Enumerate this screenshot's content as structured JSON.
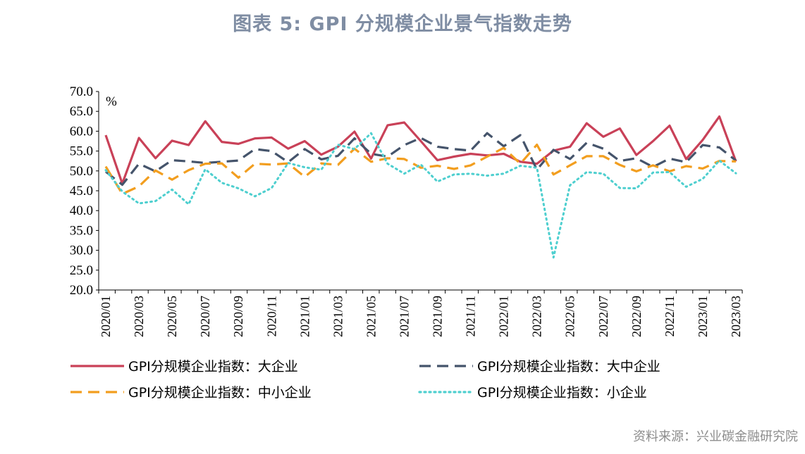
{
  "title": "图表 5:  GPI 分规模企业景气指数走势",
  "source": "资料来源：兴业碳金融研究院",
  "chart_data": {
    "type": "line",
    "unit_label": "%",
    "ylim": [
      20,
      70
    ],
    "yticks": [
      "70.0",
      "65.0",
      "60.0",
      "55.0",
      "50.0",
      "45.0",
      "40.0",
      "35.0",
      "30.0",
      "25.0",
      "20.0"
    ],
    "xlabels": [
      "2020/01",
      "2020/03",
      "2020/05",
      "2020/07",
      "2020/09",
      "2020/11",
      "2021/01",
      "2021/03",
      "2021/05",
      "2021/07",
      "2021/09",
      "2021/11",
      "2022/01",
      "2022/03",
      "2022/05",
      "2022/07",
      "2022/09",
      "2022/11",
      "2023/01",
      "2023/03"
    ],
    "categories": [
      "2020/01",
      "2020/02",
      "2020/03",
      "2020/04",
      "2020/05",
      "2020/06",
      "2020/07",
      "2020/08",
      "2020/09",
      "2020/10",
      "2020/11",
      "2020/12",
      "2021/01",
      "2021/02",
      "2021/03",
      "2021/04",
      "2021/05",
      "2021/06",
      "2021/07",
      "2021/08",
      "2021/09",
      "2021/10",
      "2021/11",
      "2021/12",
      "2022/01",
      "2022/02",
      "2022/03",
      "2022/04",
      "2022/05",
      "2022/06",
      "2022/07",
      "2022/08",
      "2022/09",
      "2022/10",
      "2022/11",
      "2022/12",
      "2023/01",
      "2023/02",
      "2023/03"
    ],
    "series": [
      {
        "name": "GPI分规模企业指数：大企业",
        "color": "#c94158",
        "style": "solid",
        "values": [
          59.0,
          46.8,
          58.3,
          53.2,
          57.6,
          56.5,
          62.5,
          57.3,
          56.8,
          58.2,
          58.4,
          55.6,
          57.5,
          54.1,
          56.1,
          59.9,
          53.1,
          61.5,
          62.2,
          57.5,
          52.7,
          53.6,
          54.3,
          53.9,
          54.3,
          52.3,
          51.8,
          55.1,
          56.1,
          62.0,
          58.6,
          60.7,
          54.0,
          57.5,
          61.4,
          53.0,
          57.8,
          63.7,
          52.4
        ]
      },
      {
        "name": "GPI分规模企业指数：大中企业",
        "color": "#45546b",
        "style": "dash",
        "values": [
          49.8,
          46.5,
          51.8,
          49.9,
          52.7,
          52.4,
          52.0,
          52.3,
          52.6,
          55.5,
          55.0,
          52.2,
          55.5,
          52.9,
          53.8,
          58.2,
          54.3,
          53.6,
          56.5,
          58.3,
          56.1,
          55.5,
          55.1,
          59.5,
          56.2,
          59.0,
          50.3,
          55.3,
          53.0,
          57.1,
          55.6,
          52.5,
          53.2,
          51.0,
          53.1,
          52.2,
          56.5,
          55.9,
          52.6
        ]
      },
      {
        "name": "GPI分规模企业指数：中小企业",
        "color": "#f29e1f",
        "style": "dash",
        "values": [
          51.1,
          44.2,
          46.1,
          50.1,
          47.8,
          50.2,
          51.8,
          51.9,
          48.3,
          51.8,
          51.6,
          51.9,
          48.5,
          51.9,
          51.5,
          55.6,
          52.3,
          53.2,
          53.0,
          50.8,
          51.3,
          50.5,
          51.4,
          53.6,
          55.8,
          51.8,
          56.6,
          49.1,
          51.4,
          53.7,
          53.7,
          51.5,
          49.9,
          51.4,
          49.9,
          51.2,
          50.6,
          52.5,
          52.4
        ]
      },
      {
        "name": "GPI分规模企业指数：小企业",
        "color": "#4ecfcf",
        "style": "dot",
        "values": [
          50.2,
          44.8,
          41.8,
          42.4,
          45.3,
          41.6,
          50.4,
          47.0,
          45.6,
          43.6,
          45.7,
          52.0,
          50.9,
          50.3,
          56.6,
          55.5,
          59.5,
          51.8,
          49.3,
          51.6,
          47.3,
          49.1,
          49.3,
          48.8,
          49.3,
          51.3,
          50.8,
          28.2,
          46.4,
          49.7,
          49.3,
          45.7,
          45.6,
          49.6,
          49.7,
          46.0,
          48.0,
          52.6,
          49.4
        ]
      }
    ],
    "legend_position": "bottom",
    "grid": false
  }
}
